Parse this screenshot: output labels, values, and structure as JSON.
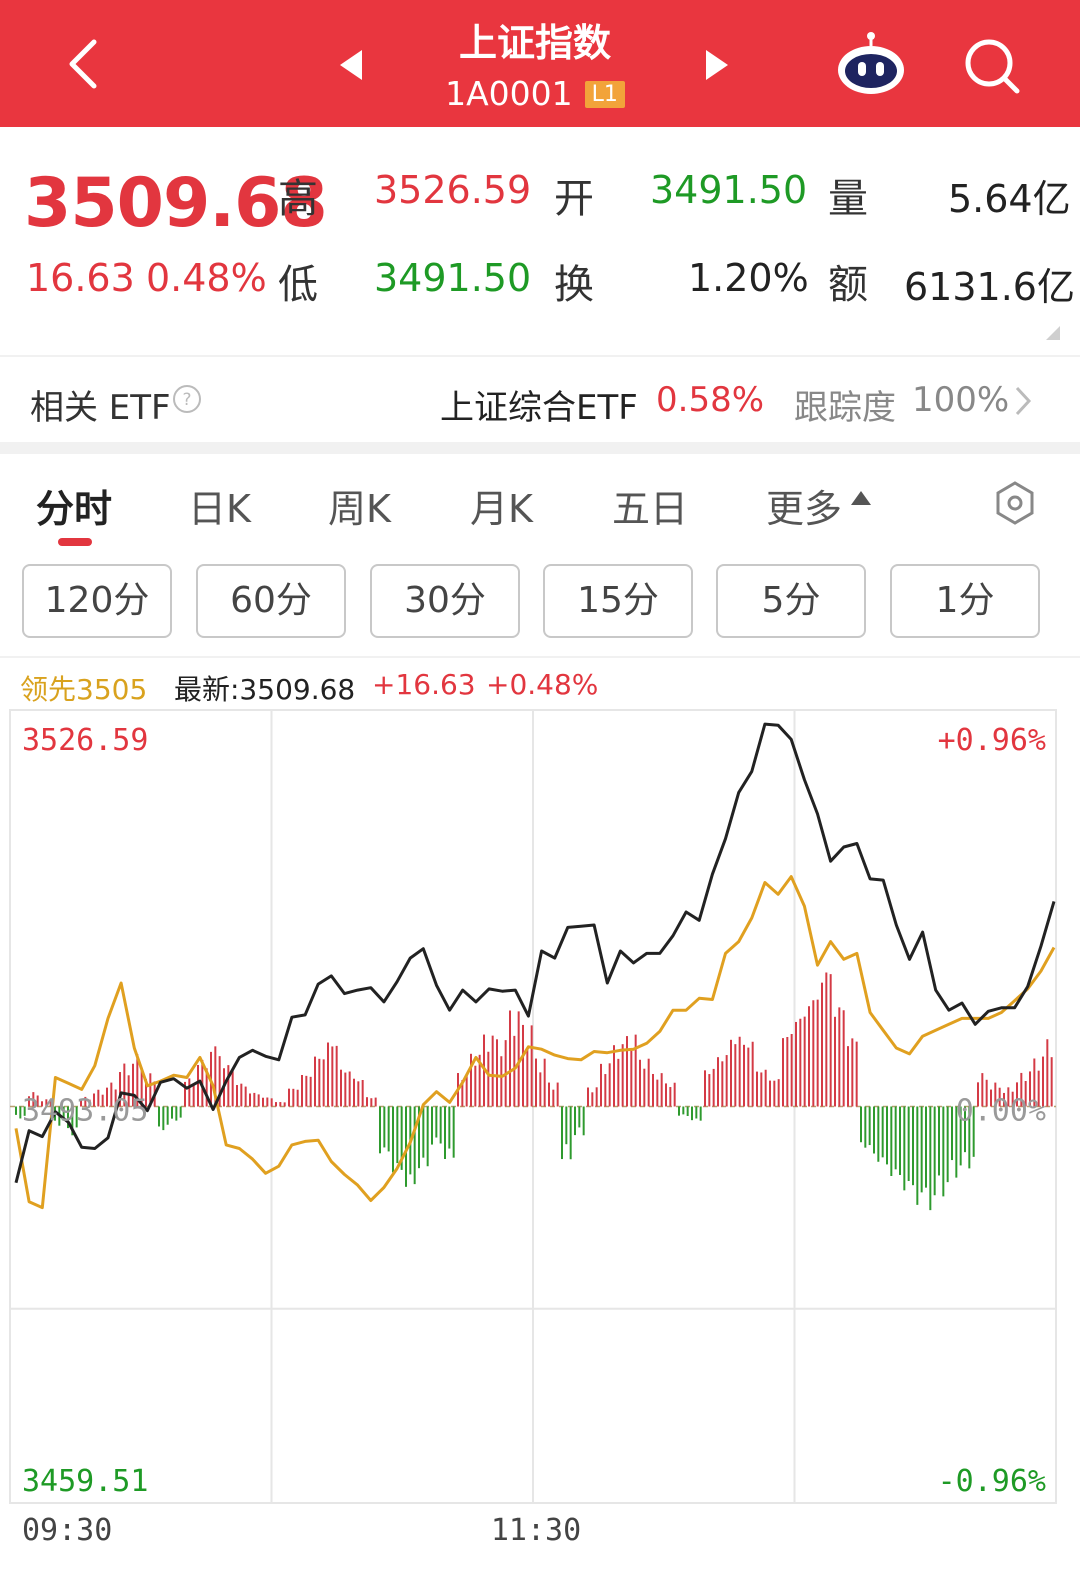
{
  "header": {
    "title": "上证指数",
    "code": "1A0001",
    "level_badge": "L1",
    "icons": [
      "back-arrow-icon",
      "prev-arrow-icon",
      "next-arrow-icon",
      "robot-assistant-icon",
      "search-icon"
    ]
  },
  "quote": {
    "price": "3509.68",
    "change": "16.63",
    "change_pct": "0.48%",
    "high_label": "高",
    "high": "3526.59",
    "low_label": "低",
    "low": "3491.50",
    "open_label": "开",
    "open": "3491.50",
    "turnover_label": "换",
    "turnover": "1.20%",
    "volume_label": "量",
    "volume": "5.64亿",
    "amount_label": "额",
    "amount": "6131.6亿"
  },
  "etf": {
    "label": "相关 ETF",
    "name": "上证综合ETF",
    "pct": "0.58%",
    "tracking_label": "跟踪度",
    "tracking": "100%"
  },
  "tabs": [
    {
      "label": "分时",
      "active": true
    },
    {
      "label": "日K"
    },
    {
      "label": "周K"
    },
    {
      "label": "月K"
    },
    {
      "label": "五日"
    },
    {
      "label": "更多"
    }
  ],
  "periods": [
    "120分",
    "60分",
    "30分",
    "15分",
    "5分",
    "1分"
  ],
  "chart_info": {
    "leader": "领先3505",
    "latest": "最新:3509.68",
    "change": "+16.63",
    "change_pct": "+0.48%"
  },
  "chart_data": {
    "type": "line",
    "y_left_top": "3526.59",
    "y_left_mid": "3493.05",
    "y_left_bottom": "3459.51",
    "y_right_top": "+0.96%",
    "y_right_mid": "0.00%",
    "y_right_bottom": "-0.96%",
    "x_labels": [
      "09:30",
      "11:30"
    ],
    "ylim": [
      3459.51,
      3526.59
    ],
    "prev_close": 3493.05,
    "colors": {
      "price": "#222222",
      "leader": "#e0a020",
      "up_bar": "#d43a45",
      "down_bar": "#2e9a2e",
      "grid": "#e6e6e6"
    },
    "series": [
      {
        "values": [
          3486.6,
          3491.0,
          3490.5,
          3492.6,
          3491.7,
          3489.6,
          3489.5,
          3490.4,
          3494.2,
          3494.0,
          3492.7,
          3495.1,
          3495.4,
          3494.6,
          3495.2,
          3492.8,
          3495.2,
          3497.2,
          3497.8,
          3497.3,
          3497.0,
          3500.6,
          3500.8,
          3503.4,
          3504.1,
          3502.6,
          3502.9,
          3503.1,
          3501.9,
          3503.6,
          3505.6,
          3506.4,
          3503.3,
          3501.2,
          3502.9,
          3501.9,
          3503.0,
          3502.8,
          3502.9,
          3500.7,
          3506.2,
          3505.6,
          3508.2,
          3508.3,
          3508.4,
          3503.5,
          3506.2,
          3505.2,
          3506.0,
          3506.0,
          3507.5,
          3509.5,
          3508.8,
          3512.7,
          3515.7,
          3519.6,
          3521.4,
          3525.4,
          3525.3,
          3524.1,
          3520.7,
          3517.8,
          3513.8,
          3515.0,
          3515.3,
          3512.3,
          3512.2,
          3508.4,
          3505.5,
          3507.8,
          3502.9,
          3501.2,
          3501.8,
          3500.0,
          3501.1,
          3501.4,
          3501.4,
          3503.2,
          3506.6,
          3510.4
        ]
      },
      {
        "values": [
          3491.2,
          3485.0,
          3484.5,
          3495.5,
          3495.0,
          3494.5,
          3496.5,
          3500.5,
          3503.5,
          3498.0,
          3494.8,
          3495.2,
          3495.7,
          3495.5,
          3497.2,
          3494.8,
          3489.8,
          3489.5,
          3488.6,
          3487.4,
          3488.0,
          3489.8,
          3490.1,
          3490.2,
          3488.4,
          3487.3,
          3486.4,
          3485.1,
          3486.2,
          3487.8,
          3490.0,
          3493.2,
          3494.3,
          3493.4,
          3495.1,
          3497.2,
          3495.7,
          3495.6,
          3496.3,
          3498.1,
          3497.9,
          3497.4,
          3497.1,
          3497.0,
          3497.7,
          3497.6,
          3497.8,
          3497.9,
          3498.4,
          3499.4,
          3501.2,
          3501.2,
          3502.2,
          3502.1,
          3506.0,
          3507.0,
          3509.0,
          3512.0,
          3511.0,
          3512.5,
          3510.0,
          3505.0,
          3507.0,
          3505.5,
          3506.0,
          3501.0,
          3499.5,
          3498.0,
          3497.5,
          3499.0,
          3499.5,
          3500.0,
          3500.5,
          3500.5,
          3500.5,
          3501.0,
          3502.0,
          3503.0,
          3504.5,
          3506.5
        ]
      }
    ],
    "bars": [
      -5,
      6,
      3,
      -8,
      -12,
      4,
      7,
      10,
      18,
      22,
      14,
      -10,
      -6,
      12,
      20,
      26,
      18,
      10,
      6,
      4,
      2,
      8,
      14,
      22,
      28,
      16,
      12,
      4,
      -20,
      -28,
      -34,
      -26,
      -16,
      -22,
      14,
      22,
      30,
      28,
      40,
      34,
      20,
      10,
      -22,
      -12,
      8,
      18,
      26,
      30,
      20,
      14,
      10,
      -4,
      -6,
      16,
      22,
      30,
      28,
      16,
      12,
      32,
      40,
      48,
      60,
      44,
      30,
      -18,
      -24,
      -30,
      -36,
      -42,
      -44,
      -38,
      -30,
      -26,
      14,
      10,
      8,
      14,
      20,
      28
    ]
  }
}
